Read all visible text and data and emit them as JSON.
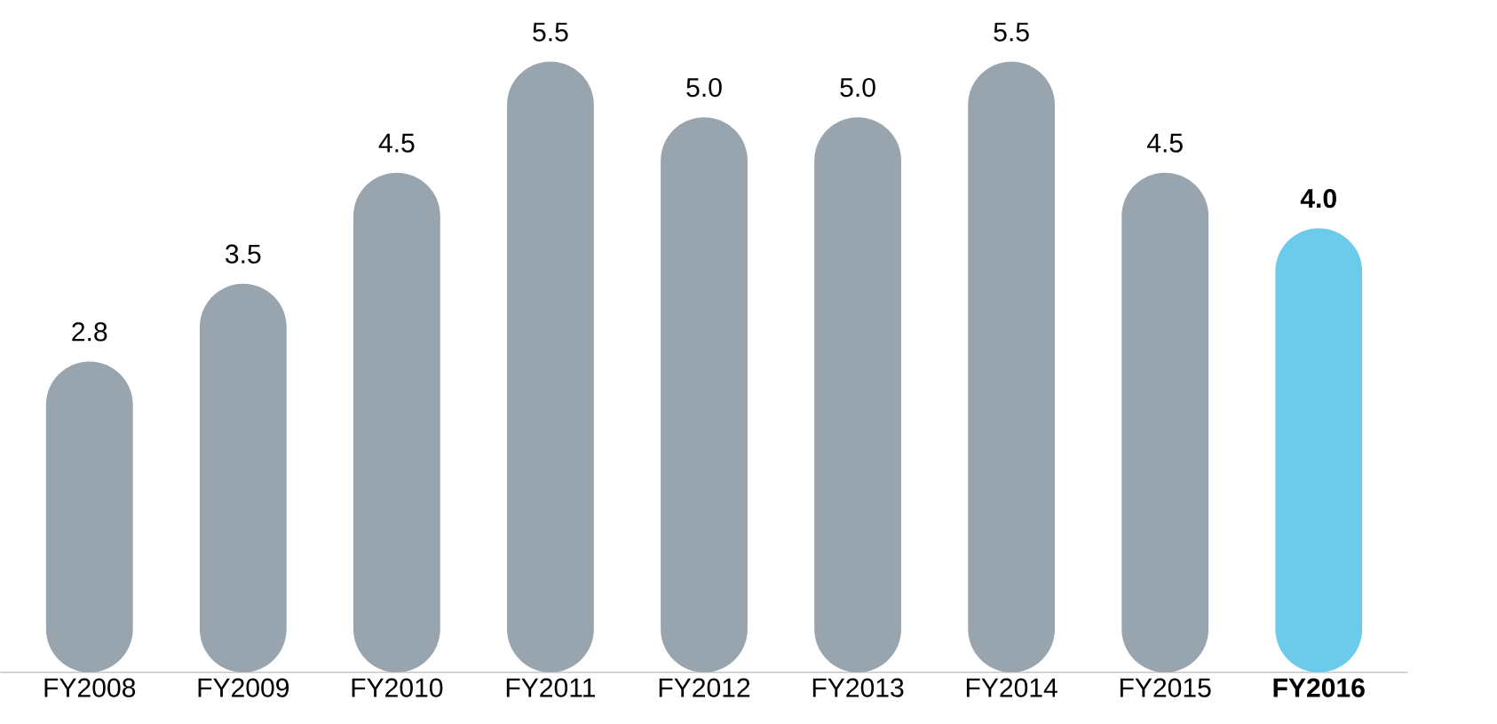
{
  "chart_data": {
    "type": "bar",
    "categories": [
      "FY2008",
      "FY2009",
      "FY2010",
      "FY2011",
      "FY2012",
      "FY2013",
      "FY2014",
      "FY2015",
      "**FY2016**"
    ],
    "values": [
      2.8,
      3.5,
      4.5,
      5.5,
      5.0,
      5.0,
      5.5,
      4.5,
      4.0
    ],
    "colors": [
      "#98a4ae",
      "#98a4ae",
      "#98a4ae",
      "#98a4ae",
      "#98a4ae",
      "#98a4ae",
      "#98a4ae",
      "#98a4ae",
      "#6ccbea"
    ],
    "value_labels": [
      "2.8",
      "3.5",
      "4.5",
      "5.5",
      "5.0",
      "5.0",
      "5.5",
      "4.5",
      "**4.0**"
    ]
  }
}
